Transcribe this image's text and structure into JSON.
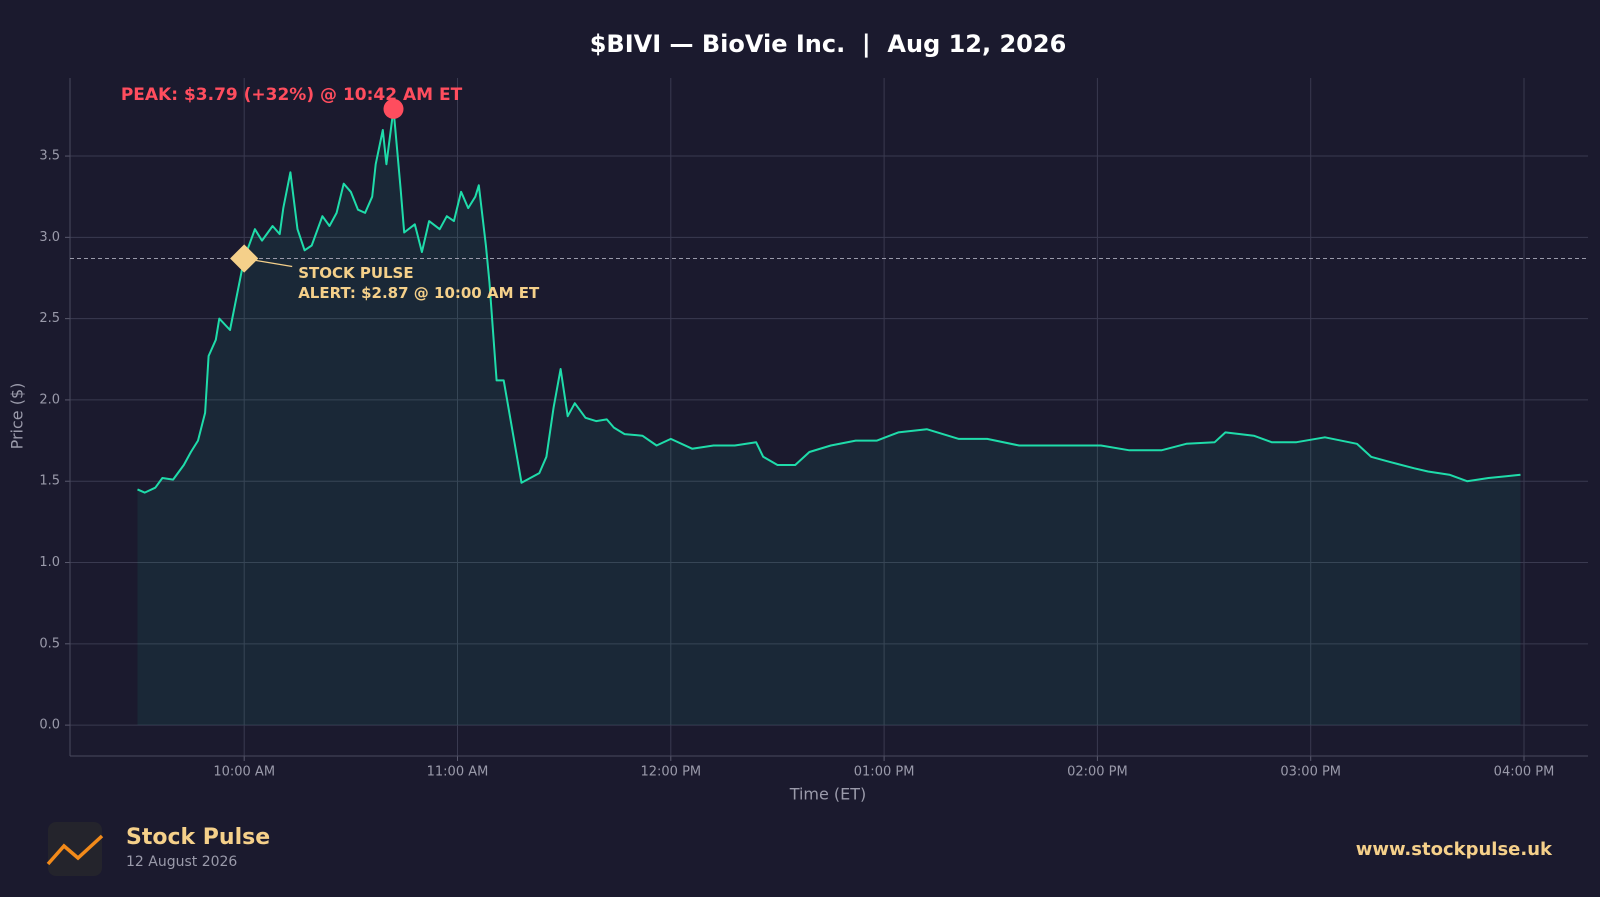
{
  "chart_data": {
    "type": "line",
    "title": "$BIVI — BioVie Inc.  |  Aug 12, 2026",
    "xlabel": "Time (ET)",
    "ylabel": "Price ($)",
    "xlim": [
      "09:11",
      "16:18"
    ],
    "ylim": [
      -0.19,
      3.98
    ],
    "xticks": [
      {
        "value": "10:00",
        "label": "10:00 AM"
      },
      {
        "value": "11:00",
        "label": "11:00 AM"
      },
      {
        "value": "12:00",
        "label": "12:00 PM"
      },
      {
        "value": "13:00",
        "label": "01:00 PM"
      },
      {
        "value": "14:00",
        "label": "02:00 PM"
      },
      {
        "value": "15:00",
        "label": "03:00 PM"
      },
      {
        "value": "16:00",
        "label": "04:00 PM"
      }
    ],
    "yticks": [
      {
        "value": 0,
        "label": "0.0"
      },
      0.5,
      {
        "value": 1,
        "label": "1.0"
      },
      1.5,
      {
        "value": 2,
        "label": "2.0"
      },
      2.5,
      {
        "value": 3,
        "label": "3.0"
      },
      3.5
    ],
    "grid": true,
    "x": [
      "09:30",
      "09:32",
      "09:35",
      "09:37",
      "09:40",
      "09:43",
      "09:45",
      "09:47",
      "09:49",
      "09:50",
      "09:52",
      "09:53",
      "09:56",
      "09:58",
      "10:00",
      "10:03",
      "10:05",
      "10:08",
      "10:10",
      "10:11",
      "10:13",
      "10:15",
      "10:17",
      "10:19",
      "10:22",
      "10:24",
      "10:26",
      "10:28",
      "10:30",
      "10:32",
      "10:34",
      "10:36",
      "10:37",
      "10:39",
      "10:40",
      "10:42",
      "10:44",
      "10:45",
      "10:48",
      "10:50",
      "10:52",
      "10:55",
      "10:57",
      "10:59",
      "11:01",
      "11:03",
      "11:05",
      "11:06",
      "11:08",
      "11:09",
      "11:11",
      "11:13",
      "11:18",
      "11:23",
      "11:25",
      "11:27",
      "11:29",
      "11:31",
      "11:33",
      "11:36",
      "11:39",
      "11:42",
      "11:44",
      "11:47",
      "11:52",
      "11:56",
      "12:00",
      "12:06",
      "12:12",
      "12:18",
      "12:24",
      "12:26",
      "12:30",
      "12:35",
      "12:39",
      "12:45",
      "12:52",
      "12:58",
      "13:04",
      "13:12",
      "13:21",
      "13:29",
      "13:38",
      "13:46",
      "13:55",
      "14:01",
      "14:09",
      "14:18",
      "14:25",
      "14:33",
      "14:36",
      "14:44",
      "14:49",
      "14:56",
      "15:04",
      "15:13",
      "15:17",
      "15:22",
      "15:29",
      "15:33",
      "15:39",
      "15:44",
      "15:50",
      "15:55",
      "15:59"
    ],
    "series": [
      {
        "name": "BIVI",
        "color": "#1fdcaa",
        "values": [
          1.45,
          1.43,
          1.46,
          1.52,
          1.51,
          1.6,
          1.68,
          1.75,
          1.92,
          2.27,
          2.37,
          2.5,
          2.43,
          2.65,
          2.87,
          3.05,
          2.98,
          3.07,
          3.02,
          3.18,
          3.4,
          3.05,
          2.92,
          2.95,
          3.13,
          3.07,
          3.15,
          3.33,
          3.28,
          3.17,
          3.15,
          3.25,
          3.45,
          3.66,
          3.45,
          3.79,
          3.3,
          3.03,
          3.08,
          2.91,
          3.1,
          3.05,
          3.13,
          3.1,
          3.28,
          3.18,
          3.25,
          3.32,
          2.95,
          2.72,
          2.12,
          2.12,
          1.49,
          1.55,
          1.65,
          1.95,
          2.19,
          1.9,
          1.98,
          1.89,
          1.87,
          1.88,
          1.83,
          1.79,
          1.78,
          1.72,
          1.76,
          1.7,
          1.72,
          1.72,
          1.74,
          1.65,
          1.6,
          1.6,
          1.68,
          1.72,
          1.75,
          1.75,
          1.8,
          1.82,
          1.76,
          1.76,
          1.72,
          1.72,
          1.72,
          1.72,
          1.69,
          1.69,
          1.73,
          1.74,
          1.8,
          1.78,
          1.74,
          1.74,
          1.77,
          1.73,
          1.65,
          1.62,
          1.58,
          1.56,
          1.54,
          1.5,
          1.52,
          1.53,
          1.54
        ]
      }
    ],
    "peak": {
      "x": "10:42",
      "value": 3.79,
      "label": "PEAK: $3.79 (+32%) @ 10:42 AM ET",
      "color": "#ff4d5e"
    },
    "alert": {
      "x": "10:00",
      "value": 2.87,
      "label": [
        "STOCK PULSE",
        "ALERT: $2.87 @ 10:00 AM ET"
      ],
      "color": "#f5d08a"
    }
  },
  "footer": {
    "brand": "Stock Pulse",
    "date": "12 August 2026",
    "url": "www.stockpulse.uk"
  }
}
